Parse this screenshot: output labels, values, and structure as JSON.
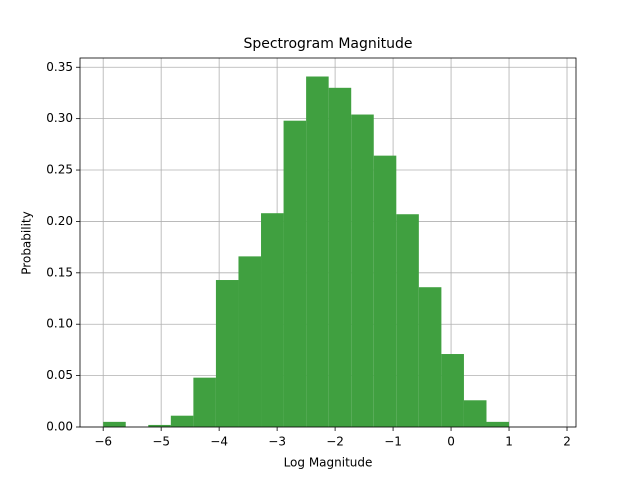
{
  "chart_data": {
    "type": "histogram",
    "title": "Spectrogram Magnitude",
    "x_label": "Log Magnitude",
    "y_label": "Probability",
    "bins": [
      -6,
      -5.6111,
      -5.2222,
      -4.8333,
      -4.4444,
      -4.0556,
      -3.6667,
      -3.2778,
      -2.8889,
      -2.5,
      -2.1111,
      -1.7222,
      -1.3333,
      -0.9444,
      -0.5556,
      -0.1667,
      0.2222,
      0.6111,
      1
    ],
    "values": [
      0.005,
      0,
      0.002,
      0.011,
      0.048,
      0.143,
      0.166,
      0.208,
      0.298,
      0.341,
      0.33,
      0.304,
      0.264,
      0.207,
      0.136,
      0.071,
      0.026,
      0.005
    ],
    "color": "#40a040",
    "xlim": [
      -6.4,
      2.155
    ],
    "xticks": [
      {
        "value": -6,
        "label": "−6"
      },
      {
        "value": -5,
        "label": "−5"
      },
      {
        "value": -4,
        "label": "−4"
      },
      {
        "value": -3,
        "label": "−3"
      },
      {
        "value": -2,
        "label": "−2"
      },
      {
        "value": -1,
        "label": "−1"
      },
      0,
      1,
      2
    ],
    "ylim": [
      0,
      0.359
    ],
    "yticks": [
      {
        "value": 0,
        "label": "0.00"
      },
      {
        "value": 0.05,
        "label": "0.05"
      },
      {
        "value": 0.1,
        "label": "0.10"
      },
      {
        "value": 0.15,
        "label": "0.15"
      },
      {
        "value": 0.2,
        "label": "0.20"
      },
      {
        "value": 0.25,
        "label": "0.25"
      },
      {
        "value": 0.3,
        "label": "0.30"
      },
      {
        "value": 0.35,
        "label": "0.35"
      }
    ],
    "grid": true
  }
}
